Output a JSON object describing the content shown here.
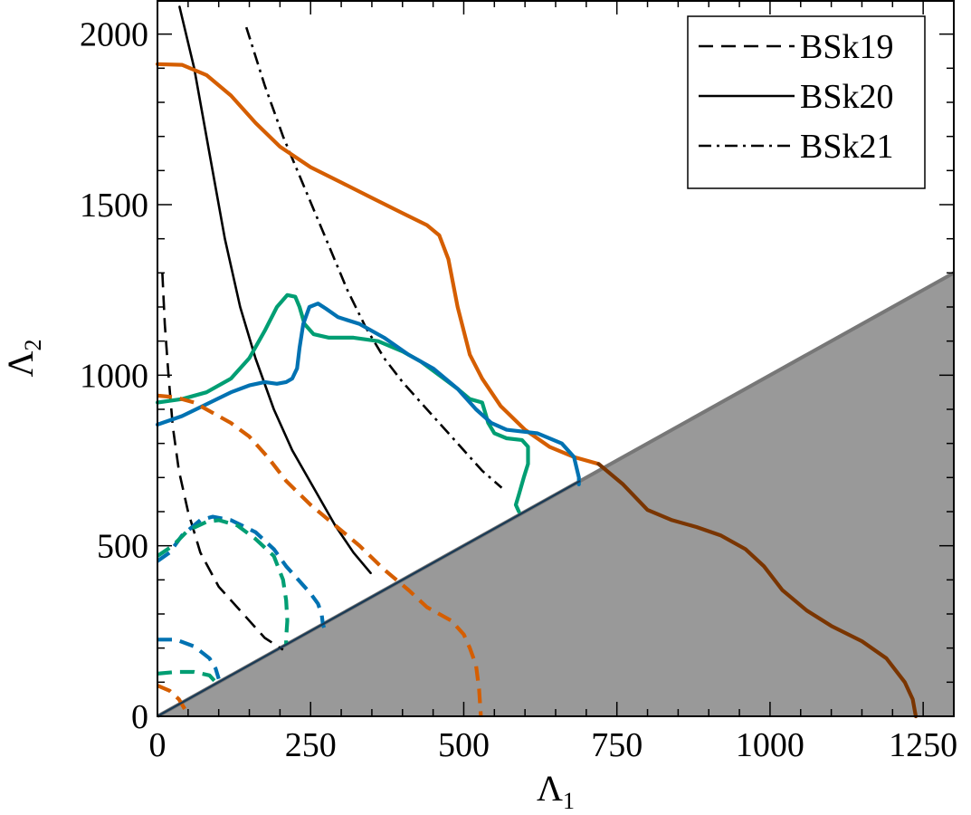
{
  "chart_data": {
    "type": "line",
    "xlabel": "Λ",
    "xlabel_sub": "1",
    "ylabel": "Λ",
    "ylabel_sub": "2",
    "xlim": [
      0,
      1300
    ],
    "ylim": [
      0,
      2100
    ],
    "xticks": [
      0,
      250,
      500,
      750,
      1000,
      1250
    ],
    "yticks": [
      0,
      500,
      1000,
      1500,
      2000
    ],
    "x_tick_labels": [
      "0",
      "250",
      "500",
      "750",
      "1000",
      "1250"
    ],
    "y_tick_labels": [
      "0",
      "500",
      "1000",
      "1500",
      "2000"
    ],
    "x_minor_step": 50,
    "y_minor_step": 100,
    "grid": false,
    "legend_position": "top-right",
    "legend": [
      {
        "label": "BSk19",
        "style": "dashed"
      },
      {
        "label": "BSk20",
        "style": "solid"
      },
      {
        "label": "BSk21",
        "style": "dashdot"
      }
    ],
    "colors": {
      "orange": "#d55e00",
      "green": "#009e73",
      "blue": "#0072b2",
      "black": "#000000",
      "shade": "#999999",
      "shade_edge": "#777777",
      "orange_dark": "#7a3500"
    },
    "shaded_region": {
      "description_polygon": [
        [
          0,
          0
        ],
        [
          1300,
          1300
        ],
        [
          1300,
          0
        ]
      ]
    },
    "series": [
      {
        "color": "black",
        "style": "dashed",
        "points": [
          [
            8,
            1300
          ],
          [
            12,
            1150
          ],
          [
            18,
            1000
          ],
          [
            25,
            850
          ],
          [
            35,
            720
          ],
          [
            50,
            600
          ],
          [
            70,
            480
          ],
          [
            100,
            380
          ],
          [
            140,
            300
          ],
          [
            175,
            230
          ],
          [
            205,
            195
          ]
        ]
      },
      {
        "color": "black",
        "style": "solid",
        "points": [
          [
            36,
            2080
          ],
          [
            60,
            1900
          ],
          [
            85,
            1650
          ],
          [
            110,
            1400
          ],
          [
            135,
            1200
          ],
          [
            160,
            1050
          ],
          [
            190,
            900
          ],
          [
            220,
            780
          ],
          [
            255,
            670
          ],
          [
            290,
            560
          ],
          [
            320,
            480
          ],
          [
            348,
            420
          ]
        ]
      },
      {
        "color": "black",
        "style": "dashdot",
        "points": [
          [
            145,
            2020
          ],
          [
            175,
            1850
          ],
          [
            205,
            1700
          ],
          [
            240,
            1550
          ],
          [
            275,
            1400
          ],
          [
            310,
            1250
          ],
          [
            340,
            1140
          ],
          [
            370,
            1050
          ],
          [
            400,
            980
          ],
          [
            440,
            900
          ],
          [
            490,
            800
          ],
          [
            530,
            720
          ],
          [
            562,
            670
          ]
        ]
      },
      {
        "color": "orange",
        "style": "solid",
        "points": [
          [
            0,
            1912
          ],
          [
            40,
            1910
          ],
          [
            80,
            1880
          ],
          [
            120,
            1820
          ],
          [
            160,
            1740
          ],
          [
            200,
            1670
          ],
          [
            250,
            1610
          ],
          [
            300,
            1565
          ],
          [
            350,
            1520
          ],
          [
            400,
            1475
          ],
          [
            440,
            1440
          ],
          [
            460,
            1410
          ],
          [
            475,
            1340
          ],
          [
            490,
            1200
          ],
          [
            510,
            1060
          ],
          [
            530,
            990
          ],
          [
            560,
            910
          ],
          [
            600,
            840
          ],
          [
            640,
            790
          ],
          [
            680,
            760
          ],
          [
            720,
            740
          ]
        ]
      },
      {
        "color": "orange_dark",
        "style": "solid",
        "points": [
          [
            720,
            740
          ],
          [
            760,
            680
          ],
          [
            800,
            605
          ],
          [
            840,
            575
          ],
          [
            880,
            555
          ],
          [
            920,
            530
          ],
          [
            960,
            490
          ],
          [
            990,
            440
          ],
          [
            1020,
            370
          ],
          [
            1060,
            310
          ],
          [
            1100,
            265
          ],
          [
            1150,
            220
          ],
          [
            1190,
            170
          ],
          [
            1220,
            100
          ],
          [
            1233,
            50
          ],
          [
            1238,
            0
          ]
        ]
      },
      {
        "color": "green",
        "style": "solid",
        "points": [
          [
            0,
            920
          ],
          [
            40,
            930
          ],
          [
            80,
            950
          ],
          [
            120,
            990
          ],
          [
            150,
            1050
          ],
          [
            175,
            1130
          ],
          [
            195,
            1200
          ],
          [
            212,
            1235
          ],
          [
            225,
            1230
          ],
          [
            232,
            1200
          ],
          [
            240,
            1150
          ],
          [
            255,
            1120
          ],
          [
            280,
            1110
          ],
          [
            320,
            1110
          ],
          [
            360,
            1100
          ],
          [
            400,
            1070
          ],
          [
            430,
            1040
          ],
          [
            460,
            1000
          ],
          [
            490,
            960
          ],
          [
            510,
            930
          ],
          [
            530,
            920
          ],
          [
            535,
            890
          ],
          [
            540,
            860
          ],
          [
            550,
            830
          ],
          [
            570,
            815
          ],
          [
            595,
            810
          ],
          [
            605,
            790
          ],
          [
            605,
            740
          ],
          [
            598,
            700
          ],
          [
            590,
            650
          ],
          [
            585,
            620
          ],
          [
            590,
            600
          ]
        ]
      },
      {
        "color": "blue",
        "style": "solid",
        "points": [
          [
            0,
            855
          ],
          [
            40,
            880
          ],
          [
            80,
            915
          ],
          [
            120,
            950
          ],
          [
            150,
            970
          ],
          [
            175,
            980
          ],
          [
            195,
            975
          ],
          [
            210,
            980
          ],
          [
            220,
            990
          ],
          [
            228,
            1020
          ],
          [
            232,
            1080
          ],
          [
            238,
            1150
          ],
          [
            248,
            1200
          ],
          [
            262,
            1210
          ],
          [
            275,
            1195
          ],
          [
            295,
            1170
          ],
          [
            330,
            1150
          ],
          [
            370,
            1110
          ],
          [
            410,
            1060
          ],
          [
            450,
            1020
          ],
          [
            490,
            960
          ],
          [
            520,
            900
          ],
          [
            545,
            860
          ],
          [
            570,
            840
          ],
          [
            620,
            830
          ],
          [
            660,
            800
          ],
          [
            680,
            760
          ],
          [
            688,
            700
          ],
          [
            688,
            680
          ]
        ]
      },
      {
        "color": "orange",
        "style": "dashed",
        "points": [
          [
            0,
            940
          ],
          [
            30,
            935
          ],
          [
            60,
            920
          ],
          [
            90,
            890
          ],
          [
            120,
            860
          ],
          [
            150,
            820
          ],
          [
            180,
            760
          ],
          [
            210,
            690
          ],
          [
            250,
            620
          ],
          [
            290,
            560
          ],
          [
            330,
            500
          ],
          [
            370,
            430
          ],
          [
            410,
            370
          ],
          [
            440,
            320
          ],
          [
            480,
            280
          ],
          [
            500,
            240
          ],
          [
            510,
            200
          ],
          [
            520,
            150
          ],
          [
            525,
            80
          ],
          [
            528,
            0
          ]
        ]
      },
      {
        "color": "blue",
        "style": "dashed",
        "points": [
          [
            0,
            455
          ],
          [
            20,
            480
          ],
          [
            40,
            530
          ],
          [
            70,
            575
          ],
          [
            90,
            585
          ],
          [
            120,
            575
          ],
          [
            160,
            540
          ],
          [
            190,
            490
          ],
          [
            210,
            440
          ],
          [
            230,
            400
          ],
          [
            250,
            360
          ],
          [
            262,
            330
          ],
          [
            268,
            300
          ],
          [
            270,
            270
          ],
          [
            272,
            260
          ]
        ]
      },
      {
        "color": "green",
        "style": "dashed",
        "points": [
          [
            0,
            470
          ],
          [
            25,
            500
          ],
          [
            50,
            545
          ],
          [
            80,
            570
          ],
          [
            100,
            575
          ],
          [
            130,
            560
          ],
          [
            160,
            520
          ],
          [
            190,
            470
          ],
          [
            205,
            400
          ],
          [
            210,
            340
          ],
          [
            212,
            280
          ],
          [
            210,
            230
          ],
          [
            210,
            210
          ]
        ]
      },
      {
        "color": "blue",
        "style": "dashed",
        "points": [
          [
            0,
            225
          ],
          [
            30,
            225
          ],
          [
            60,
            205
          ],
          [
            85,
            170
          ],
          [
            95,
            140
          ],
          [
            100,
            110
          ]
        ]
      },
      {
        "color": "green",
        "style": "dashed",
        "points": [
          [
            0,
            125
          ],
          [
            30,
            130
          ],
          [
            60,
            130
          ],
          [
            85,
            120
          ],
          [
            95,
            100
          ]
        ]
      },
      {
        "color": "orange",
        "style": "dashed",
        "points": [
          [
            0,
            90
          ],
          [
            20,
            75
          ],
          [
            35,
            50
          ],
          [
            45,
            20
          ],
          [
            48,
            0
          ]
        ]
      }
    ]
  }
}
